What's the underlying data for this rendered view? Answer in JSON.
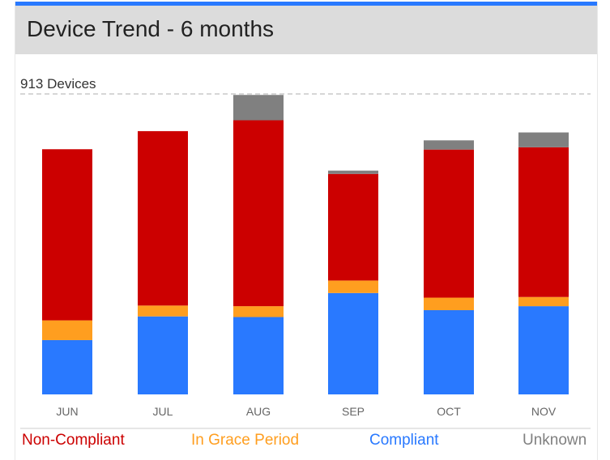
{
  "header": {
    "title": "Device Trend - 6 months"
  },
  "chart_data": {
    "type": "bar",
    "stacked": true,
    "reference_line_label": "913 Devices",
    "reference_line_value": 913,
    "categories": [
      "JUN",
      "JUL",
      "AUG",
      "SEP",
      "OCT",
      "NOV"
    ],
    "series": [
      {
        "name": "Compliant",
        "color": "#2979ff",
        "values": [
          165,
          237,
          235,
          308,
          256,
          268
        ]
      },
      {
        "name": "In Grace Period",
        "color": "#ff9e1f",
        "values": [
          60,
          33,
          33,
          38,
          38,
          28
        ]
      },
      {
        "name": "Non-Compliant",
        "color": "#cc0000",
        "values": [
          520,
          530,
          565,
          324,
          450,
          455
        ]
      },
      {
        "name": "Unknown",
        "color": "#808080",
        "values": [
          0,
          0,
          77,
          10,
          28,
          45
        ]
      }
    ],
    "ylim": [
      0,
      913
    ],
    "grid": false,
    "legend_placement": "bottom",
    "legend_order": [
      "Non-Compliant",
      "In Grace Period",
      "Compliant",
      "Unknown"
    ]
  }
}
